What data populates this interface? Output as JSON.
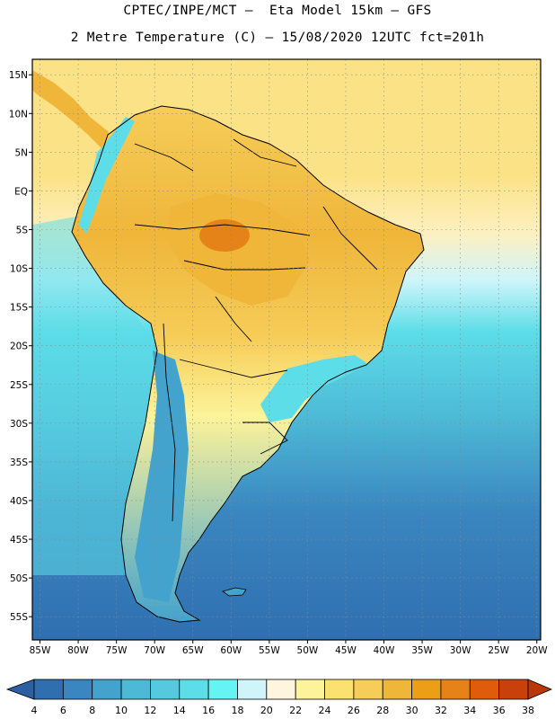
{
  "header": {
    "line1": "CPTEC/INPE/MCT –  Eta Model 15km – GFS",
    "line2": "2 Metre Temperature (C) – 15/08/2020 12UTC fct=201h"
  },
  "axes": {
    "lat_labels": [
      "15N",
      "10N",
      "5N",
      "EQ",
      "5S",
      "10S",
      "15S",
      "20S",
      "25S",
      "30S",
      "35S",
      "40S",
      "45S",
      "50S",
      "55S"
    ],
    "lon_labels": [
      "85W",
      "80W",
      "75W",
      "70W",
      "65W",
      "60W",
      "55W",
      "50W",
      "45W",
      "40W",
      "35W",
      "30W",
      "25W",
      "20W"
    ]
  },
  "colorbar": {
    "labels": [
      "4",
      "6",
      "8",
      "10",
      "12",
      "14",
      "16",
      "18",
      "20",
      "22",
      "24",
      "26",
      "28",
      "30",
      "32",
      "34",
      "36",
      "38"
    ],
    "colors": [
      "#2d5fa3",
      "#2f6fb0",
      "#3a86c0",
      "#43a3cd",
      "#4db9d6",
      "#55c9de",
      "#5cdde8",
      "#66f3f3",
      "#cff5fa",
      "#fdf5de",
      "#fdf39a",
      "#fbe16f",
      "#f6cd58",
      "#efb63a",
      "#ec9f16",
      "#e68318",
      "#df5c0c",
      "#c8400a",
      "#b83808"
    ]
  },
  "map": {
    "ocean_colors": {
      "warm_n": "#fce286",
      "warm_s": "#fdf0c0",
      "pale": "#cff5fa",
      "cyan": "#5cdde8",
      "mid": "#4db9d6",
      "deep": "#3a86c0",
      "deepest": "#2f6fb0"
    },
    "land_colors": {
      "hot": "#e68318",
      "orange": "#efb63a",
      "yellow": "#f6cd58",
      "pale": "#fdf39a",
      "andes": "#5cdde8",
      "cool": "#43a3cd"
    }
  }
}
